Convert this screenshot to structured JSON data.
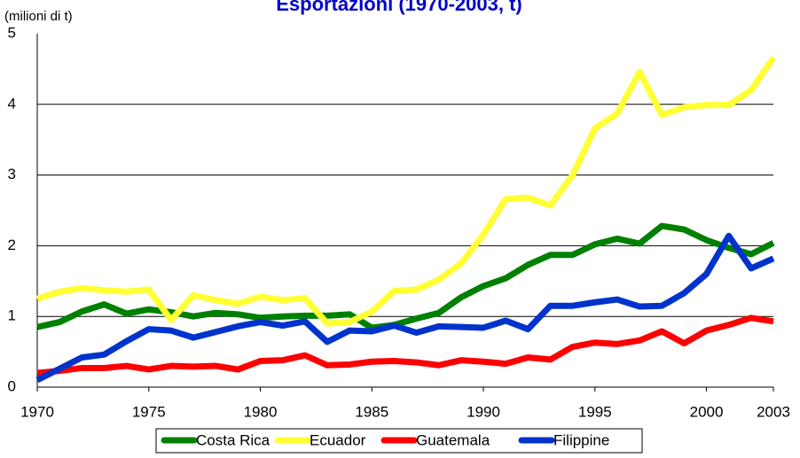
{
  "chart_data": {
    "type": "line",
    "title": "Esportazioni (1970-2003, t)",
    "y_label": "(milioni di t)",
    "x": [
      1970,
      1971,
      1972,
      1973,
      1974,
      1975,
      1976,
      1977,
      1978,
      1979,
      1980,
      1981,
      1982,
      1983,
      1984,
      1985,
      1986,
      1987,
      1988,
      1989,
      1990,
      1991,
      1992,
      1993,
      1994,
      1995,
      1996,
      1997,
      1998,
      1999,
      2000,
      2001,
      2002,
      2003
    ],
    "xlim": [
      1970,
      2003
    ],
    "xticks": [
      1970,
      1975,
      1980,
      1985,
      1990,
      1995,
      2000,
      2003
    ],
    "ylim": [
      0,
      5
    ],
    "yticks": [
      0,
      1,
      2,
      3,
      4,
      5
    ],
    "grid": true,
    "legend": "bottom",
    "series": [
      {
        "name": "Costa Rica",
        "color": "#008000",
        "values": [
          0.85,
          0.92,
          1.07,
          1.17,
          1.04,
          1.1,
          1.06,
          1.0,
          1.05,
          1.03,
          0.98,
          1.0,
          1.01,
          1.01,
          1.03,
          0.84,
          0.88,
          0.97,
          1.05,
          1.27,
          1.43,
          1.54,
          1.73,
          1.87,
          1.87,
          2.02,
          2.1,
          2.03,
          2.28,
          2.23,
          2.08,
          1.97,
          1.88,
          2.04
        ]
      },
      {
        "name": "Ecuador",
        "color": "#ffff33",
        "values": [
          1.25,
          1.35,
          1.4,
          1.37,
          1.35,
          1.38,
          0.95,
          1.3,
          1.23,
          1.18,
          1.28,
          1.23,
          1.26,
          0.9,
          0.92,
          1.07,
          1.36,
          1.38,
          1.52,
          1.75,
          2.16,
          2.66,
          2.68,
          2.57,
          3.0,
          3.66,
          3.87,
          4.46,
          3.85,
          3.96,
          3.99,
          3.99,
          4.2,
          4.66
        ]
      },
      {
        "name": "Guatemala",
        "color": "#ff0000",
        "values": [
          0.2,
          0.23,
          0.27,
          0.27,
          0.3,
          0.25,
          0.3,
          0.29,
          0.3,
          0.25,
          0.37,
          0.38,
          0.45,
          0.31,
          0.32,
          0.36,
          0.37,
          0.35,
          0.31,
          0.38,
          0.36,
          0.33,
          0.42,
          0.39,
          0.57,
          0.63,
          0.61,
          0.66,
          0.79,
          0.62,
          0.8,
          0.88,
          0.98,
          0.93
        ]
      },
      {
        "name": "Filippine",
        "color": "#0033cc",
        "values": [
          0.1,
          0.26,
          0.42,
          0.46,
          0.65,
          0.82,
          0.8,
          0.7,
          0.78,
          0.86,
          0.92,
          0.87,
          0.93,
          0.64,
          0.8,
          0.79,
          0.87,
          0.77,
          0.86,
          0.85,
          0.84,
          0.94,
          0.82,
          1.15,
          1.15,
          1.2,
          1.24,
          1.14,
          1.15,
          1.33,
          1.6,
          2.14,
          1.68,
          1.82
        ]
      }
    ]
  }
}
